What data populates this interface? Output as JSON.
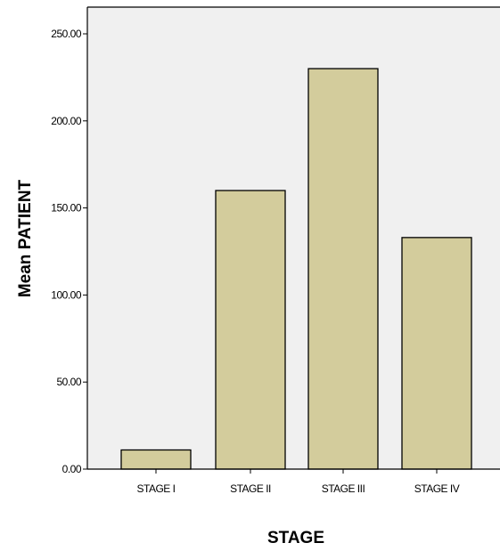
{
  "chart_data": {
    "type": "bar",
    "title": "",
    "xlabel": "STAGE",
    "ylabel": "Mean PATIENT",
    "categories": [
      "STAGE I",
      "STAGE II",
      "STAGE III",
      "STAGE IV"
    ],
    "values": [
      11,
      160,
      230,
      133
    ],
    "ylim": [
      0,
      260
    ],
    "yticks": [
      "0.00",
      "50.00",
      "100.00",
      "150.00",
      "200.00",
      "250.00"
    ],
    "ytick_values": [
      0,
      50,
      100,
      150,
      200,
      250
    ],
    "grid": false,
    "legend": "none",
    "colors": {
      "bar_fill": "#d3cc9c",
      "bar_stroke": "#000000",
      "plot_background": "#f0f0f0",
      "axis": "#000000"
    }
  }
}
